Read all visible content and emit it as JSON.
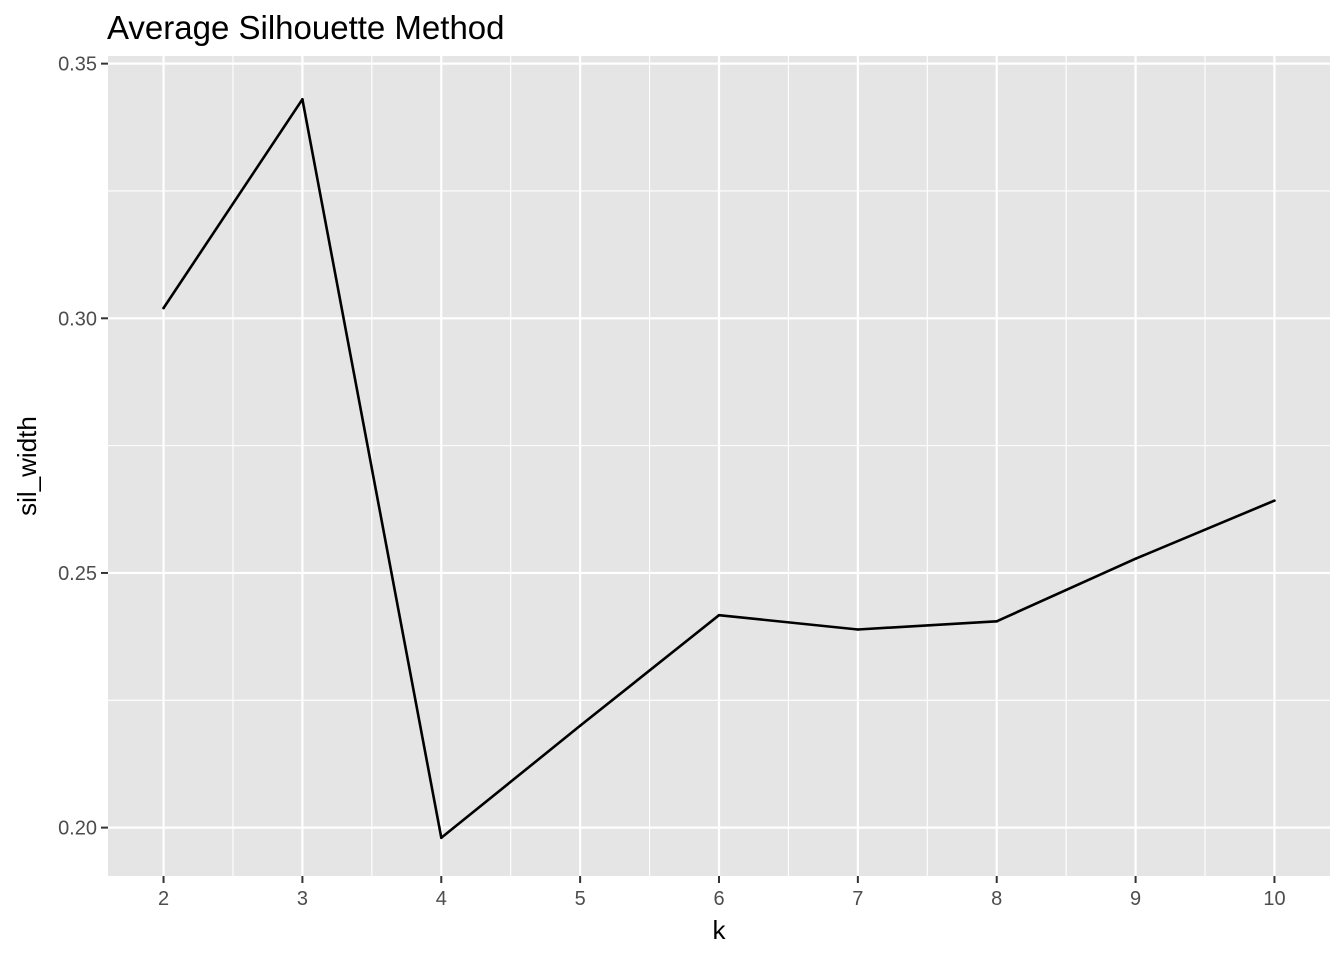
{
  "chart_data": {
    "type": "line",
    "title": "Average Silhouette Method",
    "xlabel": "k",
    "ylabel": "sil_width",
    "x": [
      2,
      3,
      4,
      5,
      6,
      7,
      8,
      9,
      10
    ],
    "series": [
      {
        "values": [
          0.302,
          0.343,
          0.198,
          0.22,
          0.2417,
          0.2389,
          0.2405,
          0.2528,
          0.2642
        ]
      }
    ],
    "xlim": [
      1.6,
      10.4
    ],
    "ylim": [
      0.1905,
      0.3515
    ],
    "x_ticks": [
      "2",
      "3",
      "4",
      "5",
      "6",
      "7",
      "8",
      "9",
      "10"
    ],
    "y_ticks": [
      "0.20",
      "0.25",
      "0.30",
      "0.35"
    ],
    "grid": true,
    "colors": {
      "panel": "#e5e5e5",
      "grid": "#ffffff",
      "line": "#000000",
      "tick": "#4d4d4d"
    }
  }
}
